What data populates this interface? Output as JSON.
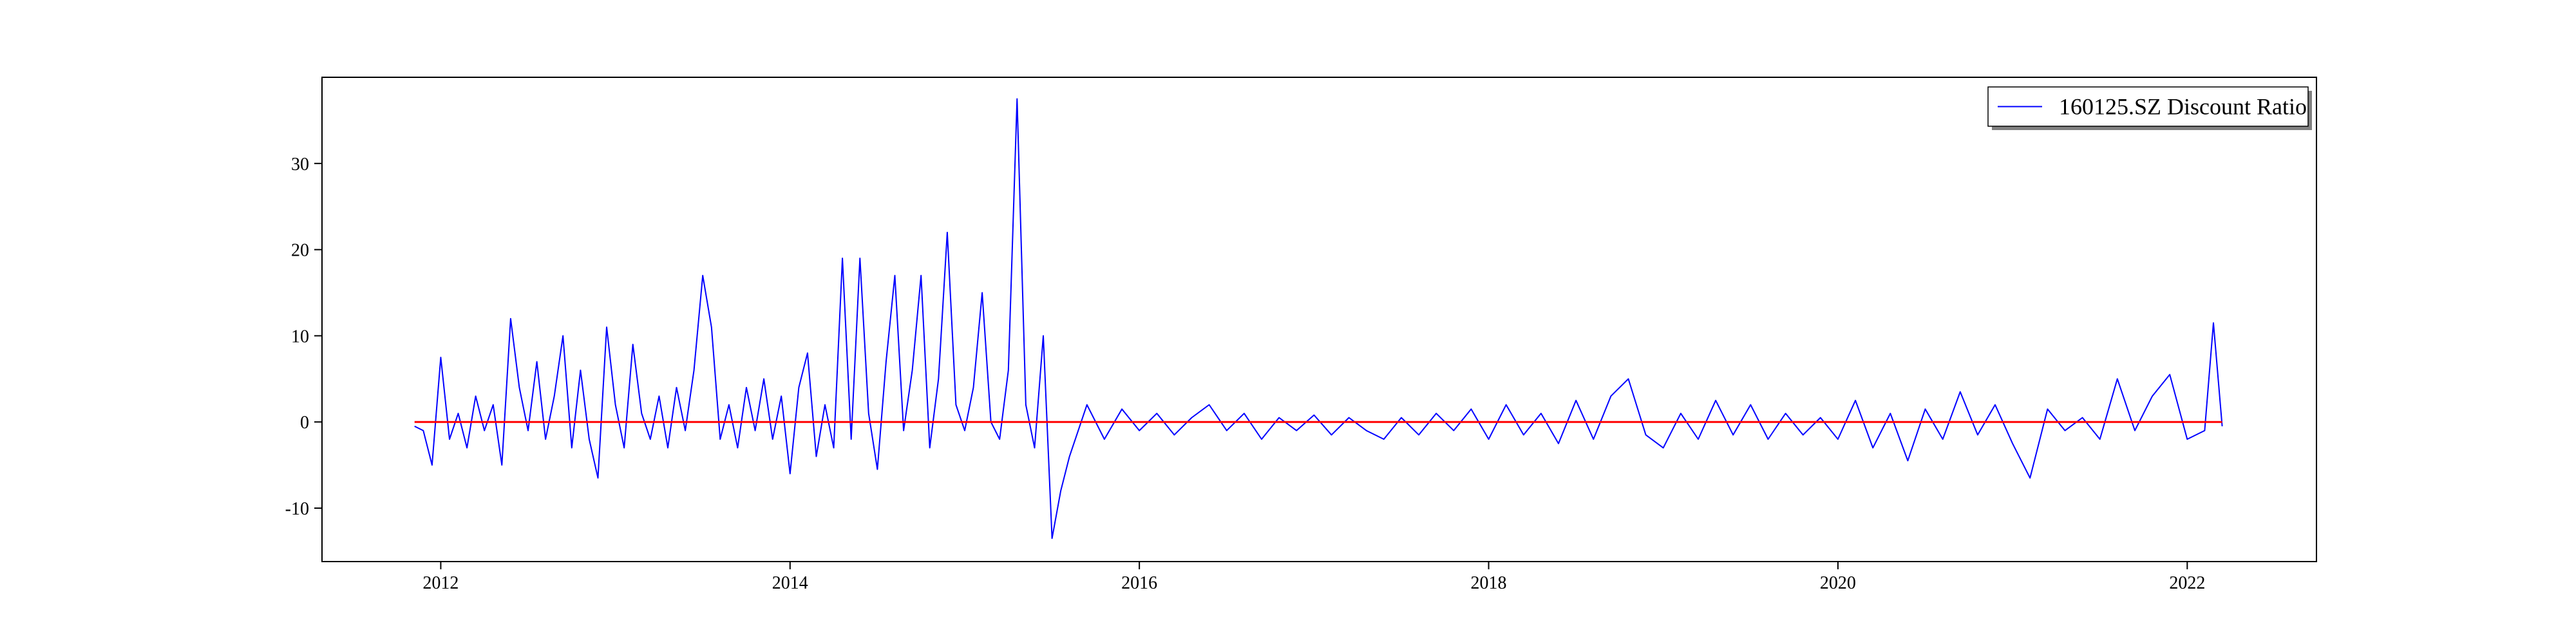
{
  "chart_data": {
    "type": "line",
    "x": [
      2011.85,
      2011.9,
      2011.95,
      2012.0,
      2012.05,
      2012.1,
      2012.15,
      2012.2,
      2012.25,
      2012.3,
      2012.35,
      2012.4,
      2012.45,
      2012.5,
      2012.55,
      2012.6,
      2012.65,
      2012.7,
      2012.75,
      2012.8,
      2012.85,
      2012.9,
      2012.95,
      2013.0,
      2013.05,
      2013.1,
      2013.15,
      2013.2,
      2013.25,
      2013.3,
      2013.35,
      2013.4,
      2013.45,
      2013.5,
      2013.55,
      2013.6,
      2013.65,
      2013.7,
      2013.75,
      2013.8,
      2013.85,
      2013.9,
      2013.95,
      2014.0,
      2014.05,
      2014.1,
      2014.15,
      2014.2,
      2014.25,
      2014.3,
      2014.35,
      2014.4,
      2014.45,
      2014.5,
      2014.55,
      2014.6,
      2014.65,
      2014.7,
      2014.75,
      2014.8,
      2014.85,
      2014.9,
      2014.95,
      2015.0,
      2015.05,
      2015.1,
      2015.15,
      2015.2,
      2015.25,
      2015.3,
      2015.35,
      2015.4,
      2015.45,
      2015.5,
      2015.55,
      2015.6,
      2015.7,
      2015.8,
      2015.9,
      2016.0,
      2016.1,
      2016.2,
      2016.3,
      2016.4,
      2016.5,
      2016.6,
      2016.7,
      2016.8,
      2016.9,
      2017.0,
      2017.1,
      2017.2,
      2017.3,
      2017.4,
      2017.5,
      2017.6,
      2017.7,
      2017.8,
      2017.9,
      2018.0,
      2018.1,
      2018.2,
      2018.3,
      2018.4,
      2018.5,
      2018.6,
      2018.7,
      2018.8,
      2018.9,
      2019.0,
      2019.1,
      2019.2,
      2019.3,
      2019.4,
      2019.5,
      2019.6,
      2019.7,
      2019.8,
      2019.9,
      2020.0,
      2020.1,
      2020.2,
      2020.3,
      2020.4,
      2020.5,
      2020.6,
      2020.7,
      2020.8,
      2020.9,
      2021.0,
      2021.1,
      2021.2,
      2021.3,
      2021.4,
      2021.5,
      2021.6,
      2021.7,
      2021.8,
      2021.9,
      2022.0,
      2022.1,
      2022.15,
      2022.2
    ],
    "series": [
      {
        "name": "160125.SZ Discount Ratio",
        "color": "#0000ff",
        "values": [
          -0.5,
          -1,
          -5,
          7.5,
          -2,
          1,
          -3,
          3,
          -1,
          2,
          -5,
          12,
          4,
          -1,
          7,
          -2,
          3,
          10,
          -3,
          6,
          -2,
          -6.5,
          11,
          2,
          -3,
          9,
          1,
          -2,
          3,
          -3,
          4,
          -1,
          6,
          17,
          11,
          -2,
          2,
          -3,
          4,
          -1,
          5,
          -2,
          3,
          -6,
          4,
          8,
          -4,
          2,
          -3,
          19,
          -2,
          19,
          1,
          -5.5,
          7,
          17,
          -1,
          6,
          17,
          -3,
          5,
          22,
          2,
          -1,
          4,
          15,
          0,
          -2,
          6,
          37.5,
          2,
          -3,
          10,
          -13.5,
          -8,
          -4,
          2,
          -2,
          1.5,
          -1,
          1,
          -1.5,
          0.5,
          2,
          -1,
          1,
          -2,
          0.5,
          -1,
          0.8,
          -1.5,
          0.5,
          -1,
          -2,
          0.5,
          -1.5,
          1,
          -1,
          1.5,
          -2,
          2,
          -1.5,
          1,
          -2.5,
          2.5,
          -2,
          3,
          5,
          -1.5,
          -3,
          1,
          -2,
          2.5,
          -1.5,
          2,
          -2,
          1,
          -1.5,
          0.5,
          -2,
          2.5,
          -3,
          1,
          -4.5,
          1.5,
          -2,
          3.5,
          -1.5,
          2,
          -2.5,
          -6.5,
          1.5,
          -1,
          0.5,
          -2,
          5,
          -1,
          3,
          5.5,
          -2,
          -1,
          11.5,
          -0.5
        ]
      }
    ],
    "reference_line": {
      "value": 0,
      "color": "#ff0000"
    },
    "xlim": [
      2011.32,
      2022.74
    ],
    "xticks": [
      2012,
      2014,
      2016,
      2018,
      2020,
      2022
    ],
    "ylim": [
      -16.2,
      40
    ],
    "yticks": [
      -10,
      0,
      10,
      20,
      30
    ],
    "legend": "upper right"
  }
}
